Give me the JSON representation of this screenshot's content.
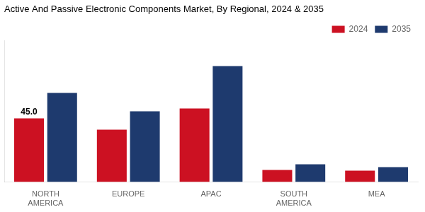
{
  "chart_data": {
    "type": "bar",
    "title": "Active And Passive Electronic Components Market, By Regional, 2024 & 2035",
    "categories": [
      "NORTH\nAMERICA",
      "EUROPE",
      "APAC",
      "SOUTH\nAMERICA",
      "MEA"
    ],
    "series": [
      {
        "name": "2024",
        "color": "#cc1122",
        "values": [
          45.0,
          37.0,
          52.0,
          8.5,
          8.0
        ]
      },
      {
        "name": "2035",
        "color": "#1e3a6e",
        "values": [
          63.0,
          50.0,
          82.0,
          12.5,
          10.5
        ]
      }
    ],
    "ylim": [
      0,
      100
    ],
    "grid": false,
    "legend": "top",
    "tick_labels": "x",
    "annotations": [
      {
        "text": "45.0",
        "category": "NORTH\nAMERICA",
        "series": "2024"
      }
    ]
  }
}
